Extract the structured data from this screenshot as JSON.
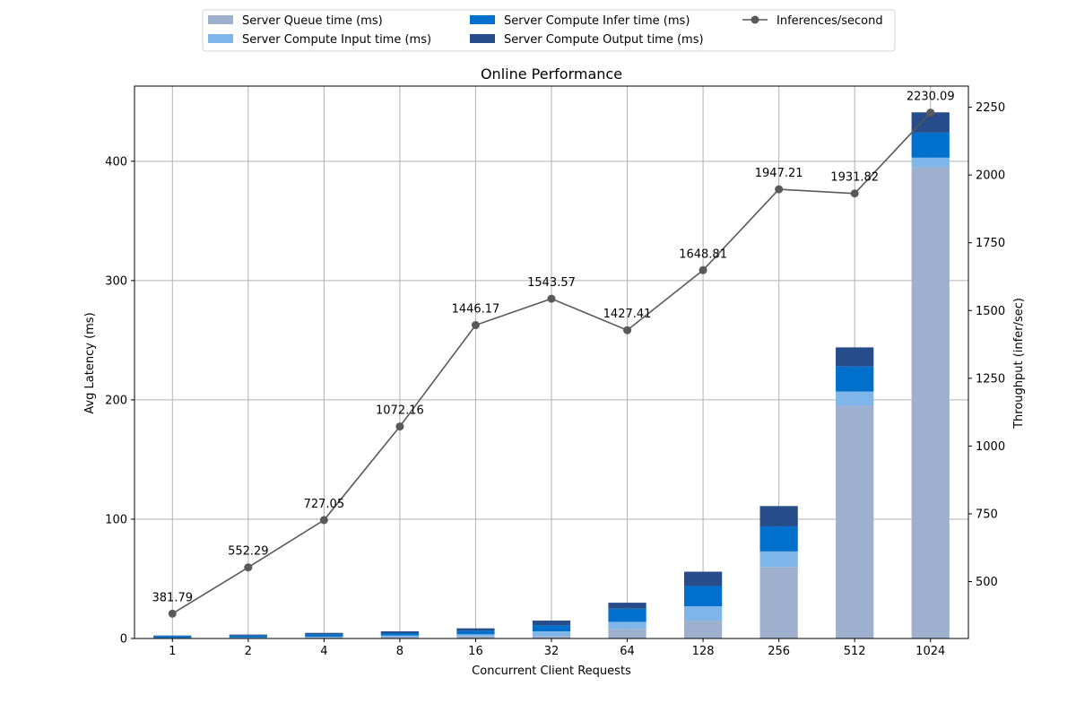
{
  "chart_data": {
    "type": "bar",
    "title": "Online Performance",
    "xlabel": "Concurrent Client Requests",
    "ylabel": "Avg Latency (ms)",
    "y2label": "Throughput (infer/sec)",
    "categories": [
      "1",
      "2",
      "4",
      "8",
      "16",
      "32",
      "64",
      "128",
      "256",
      "512",
      "1024"
    ],
    "ylim": [
      0,
      463
    ],
    "y2lim": [
      290,
      2328
    ],
    "yticks": [
      0,
      100,
      200,
      300,
      400
    ],
    "y2ticks": [
      500,
      750,
      1000,
      1250,
      1500,
      1750,
      2000,
      2250
    ],
    "grid": true,
    "legend_position": "top-center",
    "stack_series": [
      {
        "name": "Server Queue time (ms)",
        "color": "#9fb0cf",
        "values": [
          0.2,
          0.4,
          1.0,
          1.5,
          2.0,
          2.0,
          8.0,
          15.0,
          60.0,
          195.0,
          395.0
        ]
      },
      {
        "name": "Server Compute Input time (ms)",
        "color": "#7eb6e9",
        "values": [
          0.3,
          0.4,
          0.5,
          1.0,
          1.5,
          4.0,
          6.0,
          12.0,
          13.0,
          12.0,
          8.0
        ]
      },
      {
        "name": "Server Compute Infer time (ms)",
        "color": "#0070cc",
        "values": [
          1.5,
          1.7,
          2.0,
          2.0,
          3.0,
          5.0,
          11.0,
          17.0,
          21.0,
          21.0,
          21.0
        ]
      },
      {
        "name": "Server Compute Output time (ms)",
        "color": "#264d8a",
        "values": [
          0.5,
          0.8,
          1.2,
          1.5,
          2.0,
          4.0,
          5.0,
          12.0,
          17.0,
          16.0,
          17.0
        ]
      }
    ],
    "line_series": {
      "name": "Inferences/second",
      "color": "#595959",
      "values": [
        381.79,
        552.29,
        727.05,
        1072.16,
        1446.17,
        1543.57,
        1427.41,
        1648.81,
        1947.21,
        1931.82,
        2230.09
      ],
      "labels": [
        "381.79",
        "552.29",
        "727.05",
        "1072.16",
        "1446.17",
        "1543.57",
        "1427.41",
        "1648.81",
        "1947.21",
        "1931.82",
        "2230.09"
      ]
    }
  }
}
